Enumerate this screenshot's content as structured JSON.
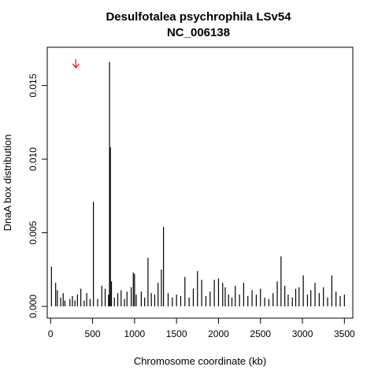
{
  "chart_data": {
    "type": "bar",
    "title": "Desulfotalea psychrophila LSv54",
    "subtitle": "NC_006138",
    "xlabel": "Chromosome coordinate (kb)",
    "ylabel": "DnaA box distribution",
    "xlim": [
      -40,
      3600
    ],
    "ylim": [
      -0.0008,
      0.0176
    ],
    "xticks": [
      0,
      500,
      1000,
      1500,
      2000,
      2500,
      3000,
      3500
    ],
    "yticks": [
      0.0,
      0.005,
      0.01,
      0.015
    ],
    "ytick_labels": [
      "0.000",
      "0.005",
      "0.010",
      "0.015"
    ],
    "grid": false,
    "marker": {
      "type": "arrow",
      "x": 300,
      "color": "#ff0000"
    },
    "bar_color": "#000000",
    "x": [
      10,
      60,
      80,
      120,
      150,
      170,
      230,
      260,
      290,
      320,
      360,
      400,
      430,
      470,
      510,
      560,
      610,
      650,
      690,
      702,
      712,
      725,
      760,
      800,
      840,
      880,
      910,
      960,
      985,
      1000,
      1020,
      1080,
      1120,
      1160,
      1200,
      1240,
      1280,
      1320,
      1345,
      1400,
      1450,
      1500,
      1550,
      1600,
      1650,
      1700,
      1750,
      1800,
      1850,
      1900,
      1950,
      2000,
      2050,
      2080,
      2120,
      2160,
      2200,
      2250,
      2300,
      2350,
      2400,
      2450,
      2500,
      2550,
      2600,
      2650,
      2700,
      2745,
      2790,
      2830,
      2880,
      2920,
      2960,
      3010,
      3060,
      3100,
      3150,
      3200,
      3250,
      3300,
      3350,
      3400,
      3450,
      3500
    ],
    "values": [
      0.0027,
      0.0016,
      0.0011,
      0.0006,
      0.0009,
      0.0004,
      0.0005,
      0.0007,
      0.0004,
      0.0008,
      0.0012,
      0.0004,
      0.0009,
      0.0005,
      0.0071,
      0.0005,
      0.0014,
      0.0012,
      0.0008,
      0.0166,
      0.0108,
      0.0017,
      0.0006,
      0.0009,
      0.0011,
      0.0005,
      0.001,
      0.0013,
      0.0023,
      0.0022,
      0.0008,
      0.001,
      0.0006,
      0.0033,
      0.0009,
      0.0008,
      0.0016,
      0.0025,
      0.0054,
      0.0009,
      0.0006,
      0.0008,
      0.0007,
      0.002,
      0.0006,
      0.0012,
      0.0024,
      0.0018,
      0.0007,
      0.001,
      0.0018,
      0.0019,
      0.0016,
      0.0013,
      0.0008,
      0.0006,
      0.0014,
      0.0008,
      0.0016,
      0.0007,
      0.0011,
      0.0008,
      0.0012,
      0.0006,
      0.0005,
      0.0009,
      0.0017,
      0.0034,
      0.0014,
      0.0008,
      0.0006,
      0.0012,
      0.0013,
      0.0021,
      0.0008,
      0.0011,
      0.0016,
      0.0009,
      0.0013,
      0.0006,
      0.0021,
      0.001,
      0.0007,
      0.0008
    ]
  }
}
